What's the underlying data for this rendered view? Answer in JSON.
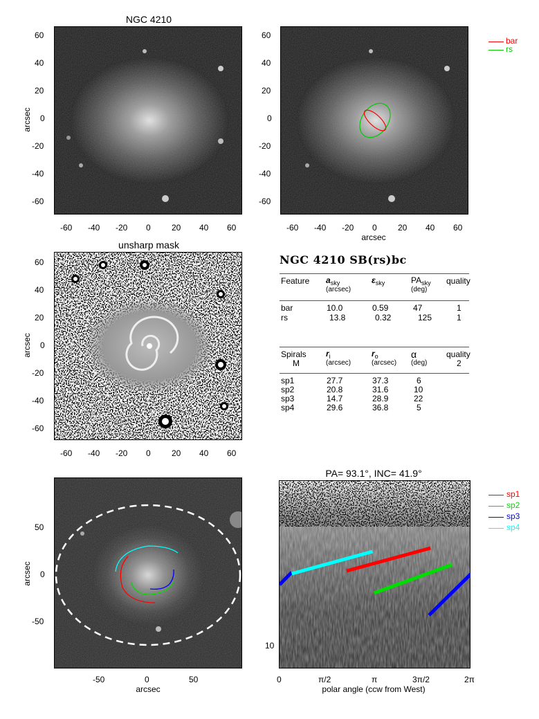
{
  "panel_tl": {
    "title": "NGC 4210",
    "ylabel": "arcsec",
    "xticks": [
      "-60",
      "-40",
      "-20",
      "0",
      "20",
      "40",
      "60"
    ],
    "yticks": [
      "60",
      "40",
      "20",
      "0",
      "-20",
      "-40",
      "-60"
    ]
  },
  "panel_tr": {
    "xlabel": "arcsec",
    "xticks": [
      "-60",
      "-40",
      "-20",
      "0",
      "20",
      "40",
      "60"
    ],
    "yticks": [
      "60",
      "40",
      "20",
      "0",
      "-20",
      "-40",
      "-60"
    ],
    "legend": [
      {
        "label": "bar",
        "color": "#ff0000"
      },
      {
        "label": "rs",
        "color": "#00cc00"
      }
    ]
  },
  "panel_ml": {
    "title": "unsharp mask",
    "ylabel": "arcsec",
    "xticks": [
      "-60",
      "-40",
      "-20",
      "0",
      "20",
      "40",
      "60"
    ],
    "yticks": [
      "60",
      "40",
      "20",
      "0",
      "-20",
      "-40",
      "-60"
    ]
  },
  "table": {
    "title": "NGC 4210  SB(rs)bc",
    "features_header": {
      "col1": "Feature",
      "col2_main": "a",
      "col2_sub": "sky",
      "col2_unit": "(arcsec)",
      "col3_main": "ε",
      "col3_sub": "sky",
      "col4_main": "PA",
      "col4_sub": "sky",
      "col4_unit": "(deg)",
      "col5": "quality"
    },
    "features": [
      {
        "name": "bar",
        "a": "10.0",
        "e": "0.59",
        "pa": "47",
        "q": "1"
      },
      {
        "name": "rs",
        "a": "13.8",
        "e": "0.32",
        "pa": "125",
        "q": "1"
      }
    ],
    "spirals_header": {
      "col1": "Spirals",
      "col1b": "M",
      "col2_main": "r",
      "col2_sub": "i",
      "col2_unit": "(arcsec)",
      "col3_main": "r",
      "col3_sub": "o",
      "col3_unit": "(arcsec)",
      "col4_main": "α",
      "col4_unit": "(deg)",
      "col5": "quality",
      "col5b": "2"
    },
    "spirals": [
      {
        "name": "sp1",
        "ri": "27.7",
        "ro": "37.3",
        "alpha": "6"
      },
      {
        "name": "sp2",
        "ri": "20.8",
        "ro": "31.6",
        "alpha": "10"
      },
      {
        "name": "sp3",
        "ri": "14.7",
        "ro": "28.9",
        "alpha": "22"
      },
      {
        "name": "sp4",
        "ri": "29.6",
        "ro": "36.8",
        "alpha": "5"
      }
    ]
  },
  "panel_bl": {
    "xlabel": "arcsec",
    "ylabel": "arcsec",
    "xticks": [
      "-50",
      "0",
      "50"
    ],
    "yticks": [
      "50",
      "0",
      "-50"
    ]
  },
  "panel_br": {
    "title": "PA=  93.1°, INC=  41.9°",
    "xlabel": "polar angle (ccw from West)",
    "xticks": [
      "0",
      "π/2",
      "π",
      "3π/2",
      "2π"
    ],
    "yticks": [
      "10"
    ],
    "legend": [
      {
        "label": "sp1",
        "color": "#ff0000"
      },
      {
        "label": "sp2",
        "color": "#00dd00"
      },
      {
        "label": "sp3",
        "color": "#0000ff"
      },
      {
        "label": "sp4",
        "color": "#00ffff"
      }
    ],
    "chart_data": {
      "type": "line",
      "xlabel": "polar angle (ccw from West)",
      "xlim": [
        0,
        6.2832
      ],
      "series": [
        {
          "name": "sp1",
          "color": "#ff0000",
          "x": [
            2.2,
            4.95
          ]
        },
        {
          "name": "sp2",
          "color": "#00dd00",
          "x": [
            3.1,
            5.65
          ]
        },
        {
          "name": "sp3",
          "color": "#0000ff",
          "x": [
            0.0,
            0.4
          ]
        },
        {
          "name": "sp3",
          "color": "#0000ff",
          "x": [
            4.9,
            6.2832
          ]
        },
        {
          "name": "sp4",
          "color": "#00ffff",
          "x": [
            0.4,
            3.05
          ]
        }
      ]
    }
  }
}
